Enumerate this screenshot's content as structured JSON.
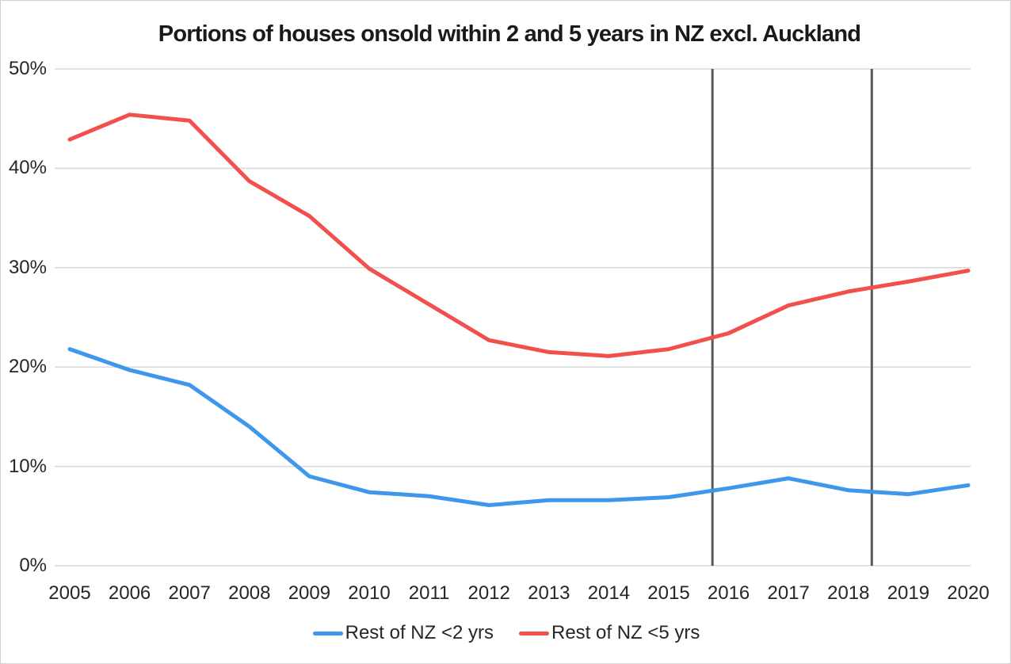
{
  "title": "Portions of houses onsold within 2 and 5 years in NZ excl. Auckland",
  "chart_data": {
    "type": "line",
    "title": "Portions of houses onsold within 2 and 5 years in NZ excl. Auckland",
    "categories": [
      2005,
      2006,
      2007,
      2008,
      2009,
      2010,
      2011,
      2012,
      2013,
      2014,
      2015,
      2016,
      2017,
      2018,
      2019,
      2020
    ],
    "series": [
      {
        "name": "Rest of NZ <2 yrs",
        "color": "#3E97EA",
        "values": [
          21.8,
          19.7,
          18.2,
          14.0,
          9.0,
          7.4,
          7.0,
          6.1,
          6.6,
          6.6,
          6.9,
          7.8,
          8.8,
          7.6,
          7.2,
          8.1
        ]
      },
      {
        "name": "Rest of NZ <5 yrs",
        "color": "#F2504D",
        "values": [
          42.9,
          45.4,
          44.8,
          38.7,
          35.2,
          29.9,
          26.3,
          22.7,
          21.5,
          21.1,
          21.8,
          23.4,
          26.2,
          27.6,
          28.6,
          29.7
        ]
      }
    ],
    "xlabel": "",
    "ylabel": "",
    "ylim": [
      0,
      50
    ],
    "ytick_labels": [
      "0%",
      "10%",
      "20%",
      "30%",
      "40%",
      "50%"
    ],
    "ytick_values": [
      0,
      10,
      20,
      30,
      40,
      50
    ],
    "grid": "horizontal",
    "gridline_color": "#d9d9d9",
    "legend_position": "bottom",
    "vertical_markers": [
      {
        "x_year": 2015.73,
        "color": "#595959"
      },
      {
        "x_year": 2018.39,
        "color": "#595959"
      }
    ]
  }
}
